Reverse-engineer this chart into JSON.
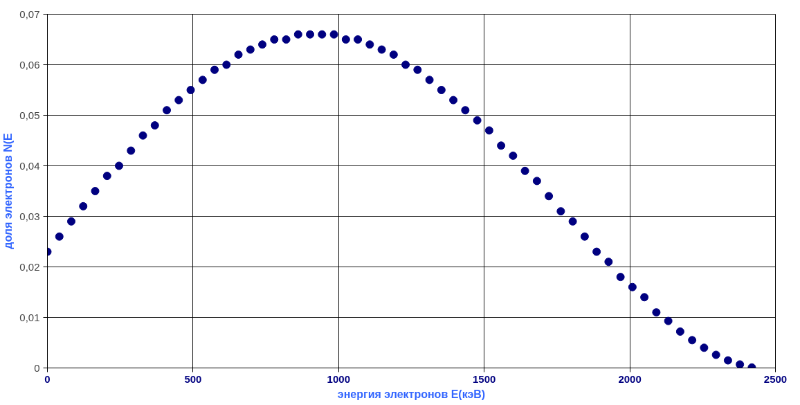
{
  "chart_data": {
    "type": "scatter",
    "xlabel": "энергия электронов E(кэВ)",
    "ylabel": "доля электронов N(E",
    "x": [
      0,
      41,
      82,
      123,
      164,
      205,
      246,
      287,
      328,
      369,
      410,
      451,
      492,
      533,
      574,
      615,
      656,
      697,
      738,
      779,
      820,
      861,
      902,
      943,
      984,
      1025,
      1066,
      1107,
      1148,
      1189,
      1230,
      1271,
      1312,
      1353,
      1394,
      1435,
      1476,
      1517,
      1558,
      1599,
      1640,
      1681,
      1722,
      1763,
      1804,
      1845,
      1886,
      1927,
      1968,
      2009,
      2050,
      2091,
      2132,
      2173,
      2214,
      2255,
      2296,
      2337,
      2378,
      2419
    ],
    "series": [
      {
        "color": "#000080",
        "values": [
          0.023,
          0.026,
          0.029,
          0.032,
          0.035,
          0.038,
          0.04,
          0.043,
          0.046,
          0.048,
          0.051,
          0.053,
          0.055,
          0.057,
          0.059,
          0.06,
          0.062,
          0.063,
          0.064,
          0.065,
          0.065,
          0.066,
          0.066,
          0.066,
          0.066,
          0.065,
          0.065,
          0.064,
          0.063,
          0.062,
          0.06,
          0.059,
          0.057,
          0.055,
          0.053,
          0.051,
          0.049,
          0.047,
          0.044,
          0.042,
          0.039,
          0.037,
          0.034,
          0.031,
          0.029,
          0.026,
          0.023,
          0.021,
          0.018,
          0.016,
          0.014,
          0.011,
          0.0093,
          0.0072,
          0.0055,
          0.004,
          0.0026,
          0.0015,
          0.0007,
          0.0001
        ]
      }
    ],
    "xlim": [
      0,
      2500
    ],
    "xticks": [
      0,
      500,
      1000,
      1500,
      2000,
      2500
    ],
    "ylim": [
      0,
      0.07
    ],
    "yticks": [
      0,
      {
        "value": 0.01,
        "label": "0,01"
      },
      {
        "value": 0.02,
        "label": "0,02"
      },
      {
        "value": 0.03,
        "label": "0,03"
      },
      {
        "value": 0.04,
        "label": "0,04"
      },
      {
        "value": 0.05,
        "label": "0,05"
      },
      {
        "value": 0.06,
        "label": "0,06"
      },
      {
        "value": 0.07,
        "label": "0,07"
      }
    ],
    "grid": true,
    "marker": "circle"
  }
}
